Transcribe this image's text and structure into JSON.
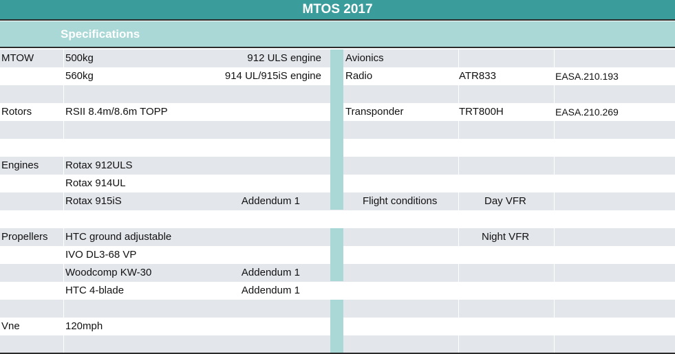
{
  "header": {
    "title": "MTOS 2017",
    "subtitle": "Specifications"
  },
  "rows": {
    "r1": {
      "label": "MTOW",
      "main": "500kg",
      "note": "912 ULS engine",
      "av1": "Avionics"
    },
    "r2": {
      "main": "560kg",
      "note": "914 UL/915iS engine",
      "av1": "Radio",
      "av2": "ATR833",
      "av3": "EASA.210.193"
    },
    "r4": {
      "label": "Rotors",
      "main": "RSII   8.4m/8.6m  TOPP",
      "av1": "Transponder",
      "av2": "TRT800H",
      "av3": "EASA.210.269"
    },
    "r7": {
      "label": "Engines",
      "main": "Rotax 912ULS"
    },
    "r8": {
      "main": "Rotax 914UL"
    },
    "r9": {
      "main": "Rotax 915iS",
      "note": "Addendum 1",
      "fc_label": "Flight conditions",
      "fc_value": "Day VFR"
    },
    "r11": {
      "label": "Propellers",
      "main": "HTC ground adjustable",
      "fc_value": "Night VFR"
    },
    "r12": {
      "main": "IVO DL3-68 VP"
    },
    "r13": {
      "main": "Woodcomp KW-30",
      "note": "Addendum 1"
    },
    "r14": {
      "main": "HTC 4-blade",
      "note": "Addendum 1"
    },
    "r16": {
      "label": "Vne",
      "main": "120mph"
    }
  },
  "colors": {
    "title_bg": "#3a9d9b",
    "subtitle_bg": "#a9d8d6",
    "row_shade": "#e3e6eb"
  }
}
